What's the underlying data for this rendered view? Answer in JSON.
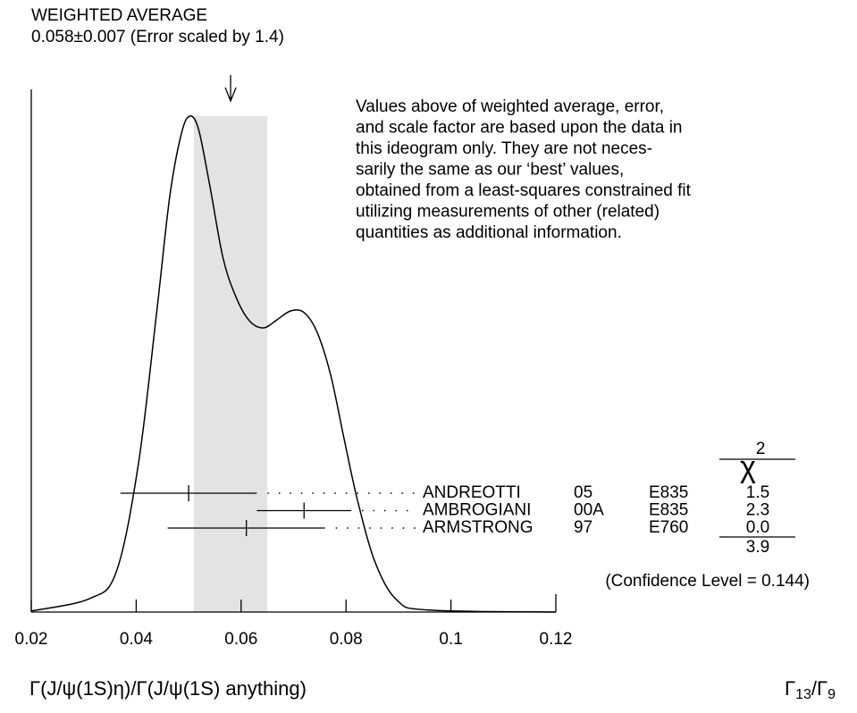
{
  "chart_data": {
    "type": "ideogram",
    "title": "WEIGHTED AVERAGE",
    "average_label": "0.058±0.007 (Error scaled by 1.4)",
    "average": 0.058,
    "error": 0.007,
    "note": [
      "Values above of weighted average, error,",
      "and scale factor are based upon the data in",
      "this ideogram only.  They are not neces-",
      "sarily the same as our ‘best’ values,",
      "obtained from a least-squares constrained fit",
      "utilizing measurements of other (related)",
      "quantities as additional information."
    ],
    "xlim": [
      0.02,
      0.12
    ],
    "xticks": [
      0.02,
      0.04,
      0.06,
      0.08,
      0.1,
      0.12
    ],
    "xlabel": "Γ(J/ψ(1S)η)/Γ(J/ψ(1S) anything)",
    "ratio_label": [
      "Γ",
      "13",
      "/Γ",
      "9"
    ],
    "chi2_header": "χ",
    "chi2_power": "2",
    "measurements": [
      {
        "name": "ANDREOTTI",
        "year": "05",
        "experiment": "E835",
        "value": 0.05,
        "error": 0.013,
        "chi2": 1.5
      },
      {
        "name": "AMBROGIANI",
        "year": "00A",
        "experiment": "E835",
        "value": 0.072,
        "error": 0.009,
        "chi2": 2.3
      },
      {
        "name": "ARMSTRONG",
        "year": "97",
        "experiment": "E760",
        "value": 0.061,
        "error": 0.015,
        "chi2": {
          "value": 0,
          "label": "0.0"
        }
      }
    ],
    "chi2_total": 3.9,
    "confidence_level_label": "(Confidence Level = 0.144)",
    "ideogram": {
      "x": [
        0.02,
        0.0311,
        0.0362,
        0.0404,
        0.0439,
        0.0464,
        0.0486,
        0.0502,
        0.0519,
        0.0541,
        0.0566,
        0.0592,
        0.0617,
        0.0643,
        0.0668,
        0.0694,
        0.072,
        0.0745,
        0.0771,
        0.0796,
        0.0822,
        0.0856,
        0.0898,
        0.0958,
        0.12
      ],
      "y": [
        0.002,
        0.027,
        0.081,
        0.297,
        0.604,
        0.838,
        0.964,
        1.0,
        0.973,
        0.856,
        0.712,
        0.631,
        0.586,
        0.573,
        0.589,
        0.607,
        0.604,
        0.564,
        0.477,
        0.351,
        0.225,
        0.099,
        0.023,
        0.004,
        0
      ]
    },
    "band_color": "#e3e3e3",
    "line_color": "#000000"
  }
}
